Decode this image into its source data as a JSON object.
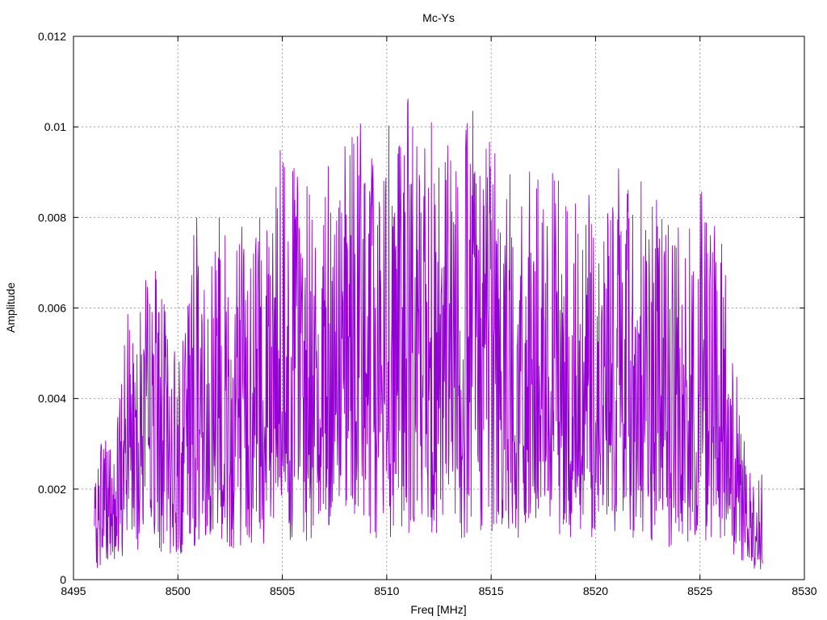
{
  "chart_data": {
    "type": "line",
    "title": "Mc-Ys",
    "xlabel": "Freq [MHz]",
    "ylabel": "Amplitude",
    "xlim": [
      8495,
      8530
    ],
    "ylim": [
      0,
      0.012
    ],
    "xticks": [
      8495,
      8500,
      8505,
      8510,
      8515,
      8520,
      8525,
      8530
    ],
    "yticks": [
      0,
      0.002,
      0.004,
      0.006,
      0.008,
      0.01,
      0.012
    ],
    "xtick_labels": [
      "8495",
      "8500",
      "8505",
      "8510",
      "8515",
      "8520",
      "8525",
      "8530"
    ],
    "ytick_labels": [
      "0",
      "0.002",
      "0.004",
      "0.006",
      "0.008",
      "0.01",
      "0.012"
    ],
    "grid": true,
    "series": [
      {
        "color": "#9400d3",
        "x": [
          8496.0,
          8496.5,
          8497.0,
          8497.5,
          8498.0,
          8498.5,
          8499.0,
          8499.5,
          8500.0,
          8500.5,
          8501.0,
          8501.5,
          8502.0,
          8502.5,
          8503.0,
          8503.5,
          8504.0,
          8504.5,
          8505.0,
          8505.5,
          8506.0,
          8506.5,
          8507.0,
          8507.5,
          8508.0,
          8508.5,
          8509.0,
          8509.5,
          8510.0,
          8510.5,
          8511.0,
          8511.5,
          8512.0,
          8512.5,
          8513.0,
          8513.5,
          8514.0,
          8514.5,
          8515.0,
          8515.5,
          8516.0,
          8516.5,
          8517.0,
          8517.5,
          8518.0,
          8518.5,
          8519.0,
          8519.5,
          8520.0,
          8520.5,
          8521.0,
          8521.5,
          8522.0,
          8522.5,
          8523.0,
          8523.5,
          8524.0,
          8524.5,
          8525.0,
          8525.5,
          8526.0,
          8526.5,
          8527.0,
          8527.5,
          8528.0
        ],
        "y": [
          0.0012,
          0.0025,
          0.0018,
          0.0035,
          0.0045,
          0.004,
          0.0042,
          0.0035,
          0.003,
          0.0045,
          0.005,
          0.0042,
          0.0055,
          0.004,
          0.005,
          0.0045,
          0.0052,
          0.0048,
          0.006,
          0.0055,
          0.0058,
          0.005,
          0.0062,
          0.0055,
          0.0058,
          0.006,
          0.0065,
          0.0055,
          0.0062,
          0.006,
          0.0065,
          0.0058,
          0.0066,
          0.006,
          0.0062,
          0.0058,
          0.0065,
          0.006,
          0.0062,
          0.0055,
          0.0058,
          0.0052,
          0.0058,
          0.005,
          0.0055,
          0.0052,
          0.0055,
          0.005,
          0.0058,
          0.0055,
          0.006,
          0.0052,
          0.0058,
          0.005,
          0.0052,
          0.0048,
          0.005,
          0.0048,
          0.0055,
          0.005,
          0.0048,
          0.0035,
          0.002,
          0.0015,
          0.0014
        ]
      }
    ]
  }
}
